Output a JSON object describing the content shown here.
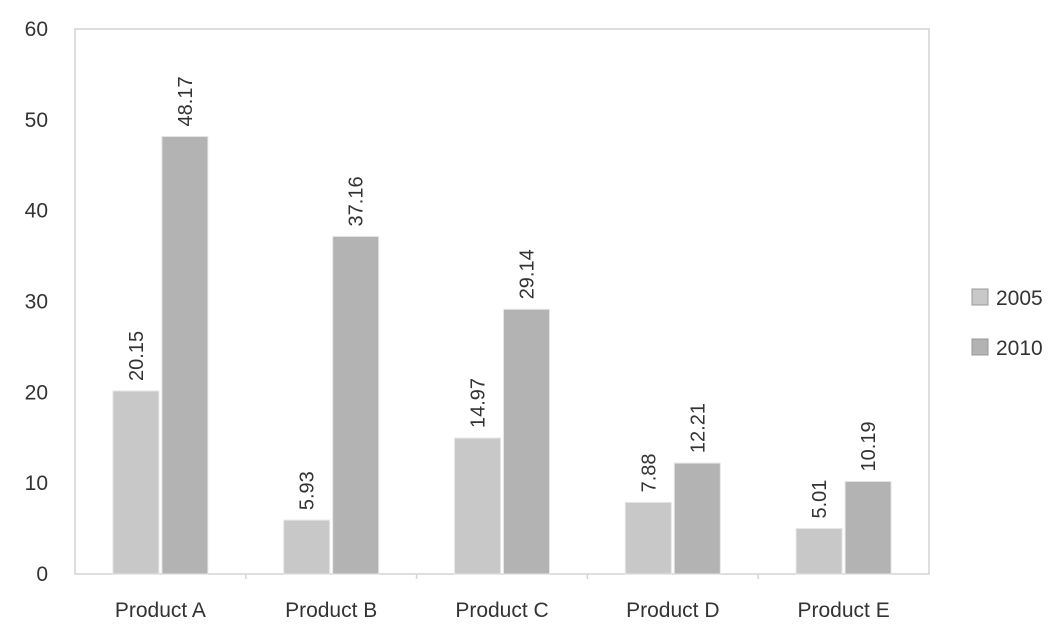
{
  "chart_data": {
    "type": "bar",
    "title": "",
    "xlabel": "",
    "ylabel": "",
    "categories": [
      "Product A",
      "Product B",
      "Product C",
      "Product D",
      "Product E"
    ],
    "series": [
      {
        "name": "2005",
        "values": [
          20.15,
          5.93,
          14.97,
          7.88,
          5.01
        ],
        "value_labels": [
          "20.15",
          "5.93",
          "14.97",
          "7.88",
          "5.01"
        ],
        "color": "#c8c8c8"
      },
      {
        "name": "2010",
        "values": [
          48.17,
          37.16,
          29.14,
          12.21,
          10.19
        ],
        "value_labels": [
          "48.17",
          "37.16",
          "29.14",
          "12.21",
          "10.19"
        ],
        "color": "#b3b3b3"
      }
    ],
    "ylim": [
      0,
      60
    ],
    "yticks": [
      "0",
      "10",
      "20",
      "30",
      "40",
      "50",
      "60"
    ],
    "grid": false,
    "legend_position": "right"
  }
}
